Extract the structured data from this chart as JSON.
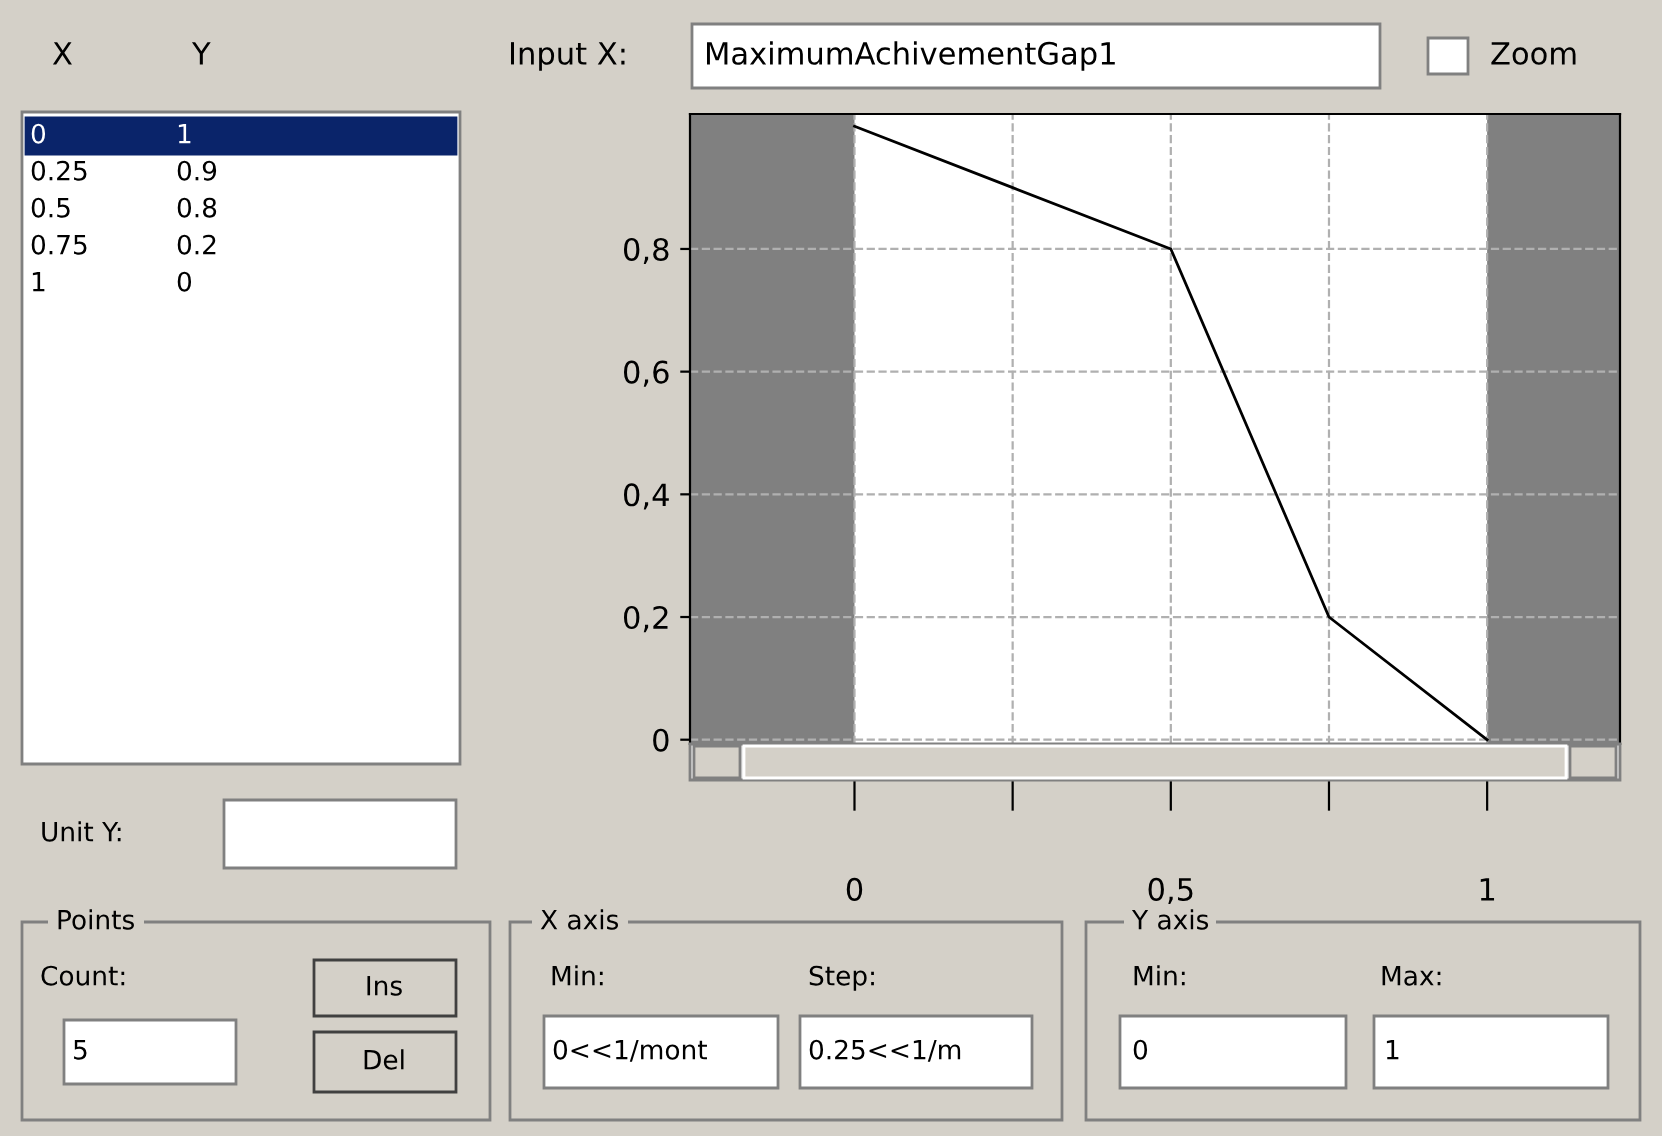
{
  "chart_data": {
    "type": "line",
    "x": [
      0,
      0.25,
      0.5,
      0.75,
      1
    ],
    "series": [
      {
        "color": "#000000",
        "values": [
          1,
          0.9,
          0.8,
          0.2,
          0
        ]
      }
    ],
    "xlim": [
      -0.26,
      1.21
    ],
    "ylim": [
      -0.007,
      1.02
    ],
    "xticks": [
      0,
      {
        "value": 0.25,
        "label": null
      },
      {
        "value": 0.5,
        "label": "0,5"
      },
      {
        "value": 0.75,
        "label": null
      },
      1
    ],
    "yticks": [
      0,
      {
        "value": 0.2,
        "label": "0,2"
      },
      {
        "value": 0.4,
        "label": "0,4"
      },
      {
        "value": 0.6,
        "label": "0,6"
      },
      {
        "value": 0.8,
        "label": "0,8"
      }
    ],
    "grid": true,
    "line_style": "solid",
    "marker": "none",
    "bands": [
      {
        "axis": "x",
        "from": -0.26,
        "to": 0,
        "color": "#808080"
      },
      {
        "axis": "x",
        "from": 1,
        "to": 1.21,
        "color": "#808080"
      }
    ],
    "annotations": [
      "X",
      "Y",
      "Input X:",
      "MaximumAchivementGap1",
      "Zoom",
      "Unit Y:",
      "Points",
      "Count:",
      "5",
      "Ins",
      "Del",
      "X axis",
      "Min:",
      "Step:",
      "0<<1/mont",
      "0.25<<1/m",
      "Y axis",
      "Min:",
      "Max:",
      "0",
      "1",
      "0",
      "1",
      "0.25",
      "0.9",
      "0.5",
      "0.8",
      "0.75",
      "0.2",
      "1",
      "0"
    ]
  }
}
